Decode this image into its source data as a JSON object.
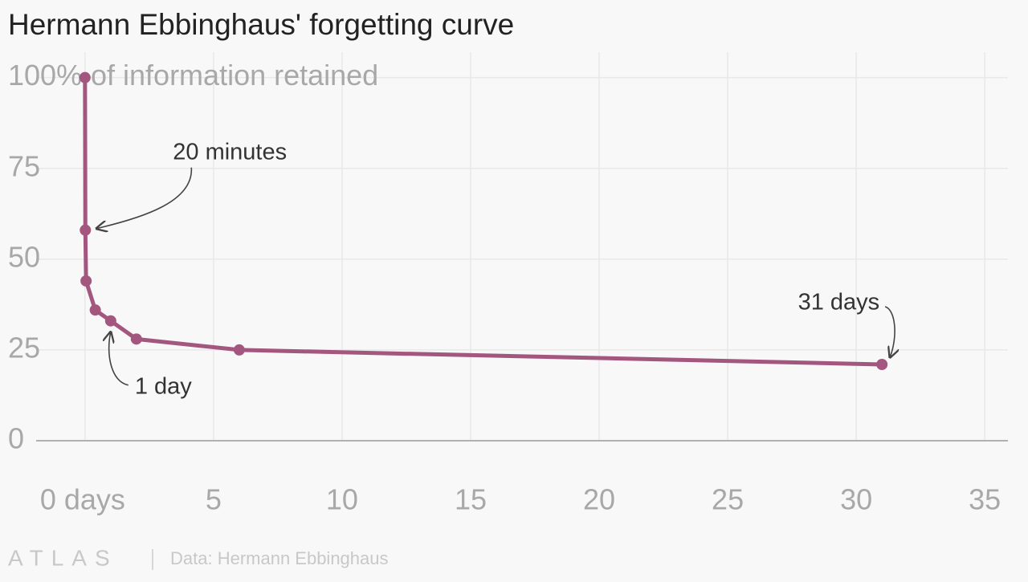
{
  "chart_data": {
    "type": "line",
    "title": "Hermann Ebbinghaus' forgetting curve",
    "y_label": "of information retained",
    "x": [
      0,
      0.014,
      0.042,
      0.4,
      1,
      2,
      6,
      31
    ],
    "values": [
      100,
      58,
      44,
      36,
      33,
      28,
      25,
      21
    ],
    "color": "#a3577f",
    "xlim": [
      -1.9,
      35.9
    ],
    "xticks": [
      {
        "value": 0,
        "label": "0 days"
      },
      5,
      10,
      15,
      20,
      25,
      30,
      35
    ],
    "ylim": [
      0,
      107
    ],
    "yticks": [
      0,
      25,
      50,
      75,
      {
        "value": 100,
        "label": "100%"
      }
    ],
    "grid": true,
    "annotations": [
      {
        "text": "20 minutes",
        "point": 1
      },
      {
        "text": "1 day",
        "point": 4
      },
      {
        "text": "31 days",
        "point": 7
      }
    ],
    "logo": "ATLAS",
    "source": "Data: Hermann Ebbinghaus"
  }
}
